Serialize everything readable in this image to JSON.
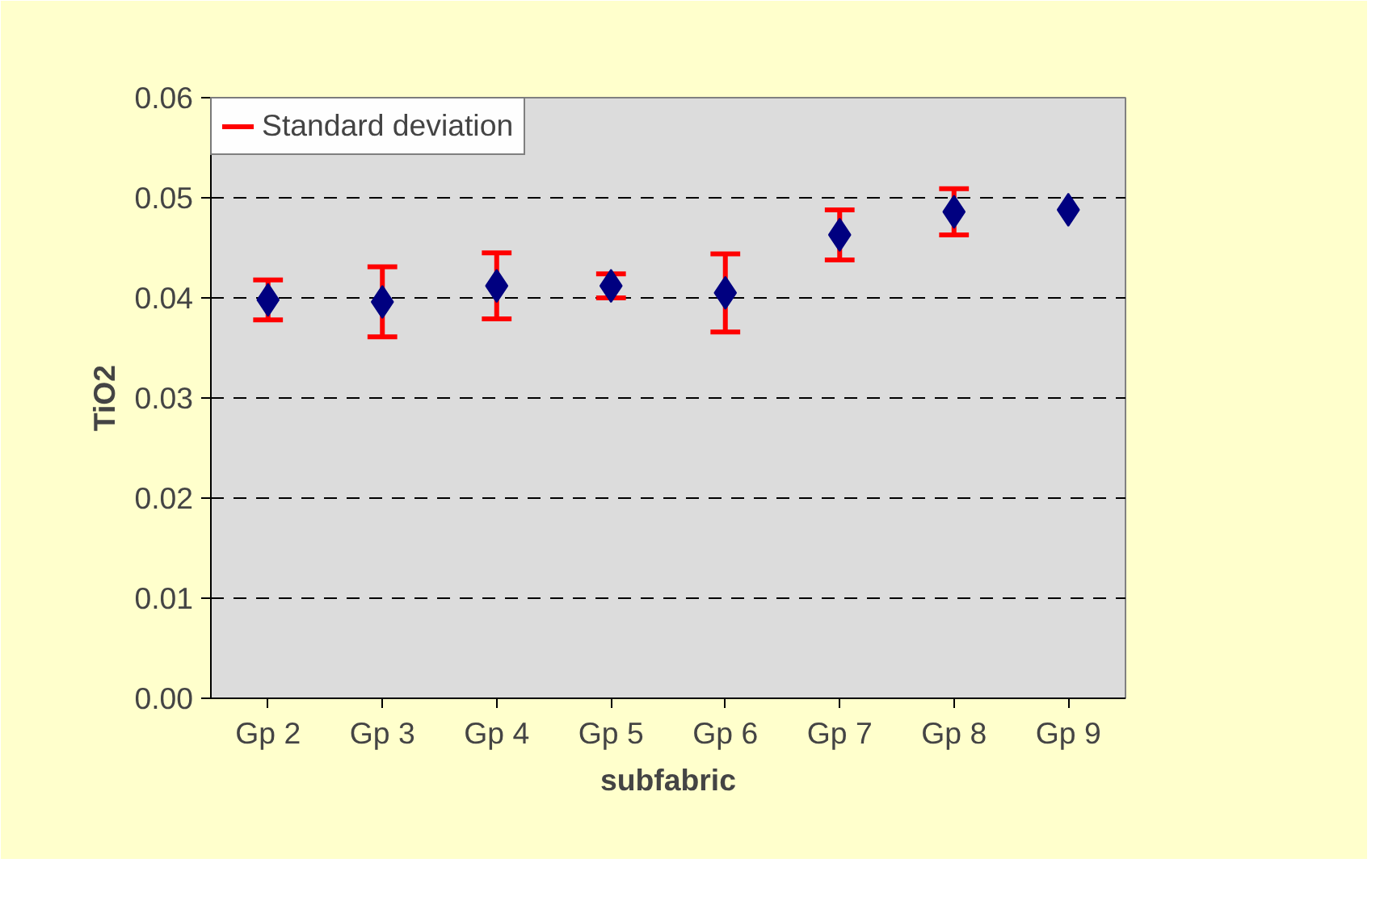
{
  "chart_data": {
    "type": "scatter",
    "xlabel": "subfabric",
    "ylabel": "TiO2",
    "categories": [
      "Gp 2",
      "Gp 3",
      "Gp 4",
      "Gp 5",
      "Gp 6",
      "Gp 7",
      "Gp 8",
      "Gp 9"
    ],
    "series": [
      {
        "name": "Standard deviation",
        "color": "#000080",
        "values": [
          0.0398,
          0.0396,
          0.0412,
          0.0412,
          0.0405,
          0.0463,
          0.0486,
          0.0488
        ],
        "errors": [
          0.002,
          0.0035,
          0.0033,
          0.0012,
          0.0039,
          0.0025,
          0.0023,
          null
        ]
      }
    ],
    "ylim": [
      0,
      0.06
    ],
    "yticks": [
      {
        "value": 0,
        "label": "0.00"
      },
      {
        "value": 0.01,
        "label": "0.01"
      },
      {
        "value": 0.02,
        "label": "0.02"
      },
      {
        "value": 0.03,
        "label": "0.03"
      },
      {
        "value": 0.04,
        "label": "0.04"
      },
      {
        "value": 0.05,
        "label": "0.05"
      },
      {
        "value": 0.06,
        "label": "0.06"
      }
    ],
    "grid": "y",
    "legend": "top left",
    "marker": "diamond"
  }
}
